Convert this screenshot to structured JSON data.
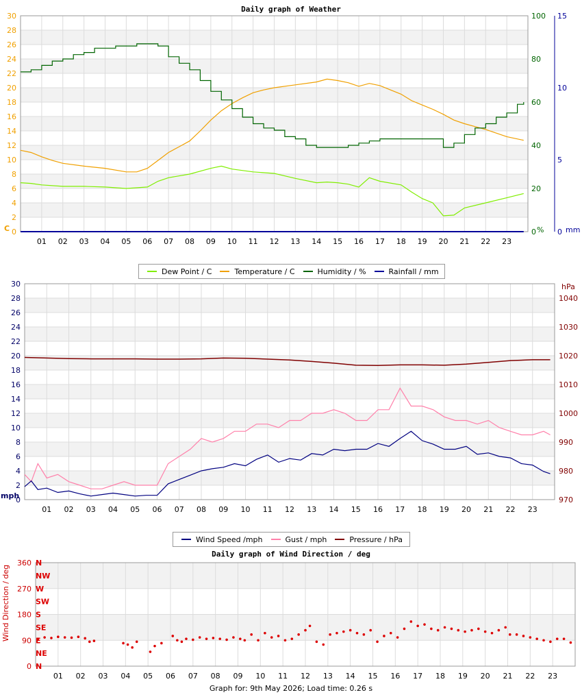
{
  "footer": {
    "graph_for_label": "Graph for:",
    "date": "9th May 2026",
    "load_label": "Load time:",
    "load_time": "0.26 s"
  },
  "hours": [
    "01",
    "02",
    "03",
    "04",
    "05",
    "06",
    "07",
    "08",
    "09",
    "10",
    "11",
    "12",
    "13",
    "14",
    "15",
    "16",
    "17",
    "18",
    "19",
    "20",
    "21",
    "22",
    "23"
  ],
  "chart_data": [
    {
      "type": "line",
      "title": "Daily graph of Weather",
      "x_unit": "hour of day",
      "xlim": [
        0,
        24
      ],
      "axes": {
        "left": {
          "label": "C",
          "ylim": [
            0,
            30
          ],
          "ticks": [
            0,
            2,
            4,
            6,
            8,
            10,
            12,
            14,
            16,
            18,
            20,
            22,
            24,
            26,
            28,
            30
          ],
          "color": "#f0a000"
        },
        "right1": {
          "label": "%",
          "ylim": [
            0,
            100
          ],
          "ticks": [
            0,
            20,
            40,
            60,
            80,
            100
          ],
          "color": "#006400"
        },
        "right2": {
          "label": "mm",
          "ylim": [
            0,
            15
          ],
          "ticks": [
            0,
            5,
            10,
            15
          ],
          "color": "#000099"
        }
      },
      "grid": true,
      "legend_position": "bottom",
      "series": [
        {
          "name": "Dew Point / C",
          "axis": "left",
          "color": "#80ee00",
          "x": [
            0,
            0.5,
            1,
            2,
            3,
            4,
            5,
            6,
            6.5,
            7,
            8,
            9,
            9.5,
            10,
            11,
            12,
            13,
            14,
            14.5,
            15,
            15.5,
            16,
            16.5,
            17,
            18,
            18.5,
            19,
            19.5,
            20,
            20.5,
            21,
            22,
            23,
            23.8
          ],
          "y": [
            6.8,
            6.7,
            6.5,
            6.3,
            6.3,
            6.2,
            6,
            6.2,
            7,
            7.5,
            8,
            8.8,
            9.1,
            8.7,
            8.3,
            8.1,
            7.4,
            6.8,
            6.9,
            6.8,
            6.6,
            6.2,
            7.5,
            7,
            6.5,
            5.5,
            4.6,
            4,
            2.2,
            2.3,
            3.3,
            4,
            4.7,
            5.3
          ]
        },
        {
          "name": "Temperature / C",
          "axis": "left",
          "color": "#f0a000",
          "x": [
            0,
            0.5,
            1,
            1.5,
            2,
            3,
            4,
            5,
            5.5,
            6,
            6.5,
            7,
            7.5,
            8,
            8.5,
            9,
            9.5,
            10,
            10.5,
            11,
            11.5,
            12,
            13,
            14,
            14.5,
            15,
            15.5,
            16,
            16.5,
            17,
            17.5,
            18,
            18.5,
            19,
            19.5,
            20,
            20.5,
            21,
            21.5,
            22,
            22.5,
            23,
            23.8
          ],
          "y": [
            11.3,
            11,
            10.4,
            9.9,
            9.5,
            9.1,
            8.8,
            8.3,
            8.3,
            8.8,
            9.9,
            11,
            11.8,
            12.6,
            14,
            15.5,
            16.8,
            17.8,
            18.6,
            19.3,
            19.7,
            20,
            20.4,
            20.8,
            21.2,
            21,
            20.7,
            20.2,
            20.6,
            20.3,
            19.7,
            19.1,
            18.2,
            17.6,
            17,
            16.3,
            15.5,
            15,
            14.6,
            14.2,
            13.7,
            13.2,
            12.7
          ]
        },
        {
          "name": "Humidity / %",
          "axis": "right1",
          "color": "#006400",
          "step": true,
          "x": [
            0,
            0.5,
            1,
            1.5,
            2,
            2.5,
            3,
            3.5,
            4,
            4.5,
            5,
            5.5,
            6,
            6.5,
            7,
            7.5,
            8,
            8.5,
            9,
            9.5,
            10,
            10.5,
            11,
            11.5,
            12,
            12.5,
            13,
            13.5,
            14,
            14.5,
            15,
            15.5,
            16,
            16.5,
            17,
            17.5,
            18,
            18.5,
            19,
            19.5,
            20,
            20.5,
            21,
            21.5,
            22,
            22.5,
            23,
            23.5,
            23.8
          ],
          "y": [
            74,
            75,
            77,
            79,
            80,
            82,
            83,
            85,
            85,
            86,
            86,
            87,
            87,
            86,
            81,
            78,
            75,
            70,
            65,
            61,
            57,
            53,
            50,
            48,
            47,
            44,
            43,
            40,
            39,
            39,
            39,
            40,
            41,
            42,
            43,
            43,
            43,
            43,
            43,
            43,
            39,
            41,
            45,
            48,
            50,
            53,
            55,
            59,
            60
          ]
        },
        {
          "name": "Rainfall / mm",
          "axis": "right2",
          "color": "#000099",
          "x": [
            0,
            23.8
          ],
          "y": [
            0,
            0
          ]
        }
      ]
    },
    {
      "type": "line",
      "title": "",
      "x_unit": "hour of day",
      "xlim": [
        0,
        24
      ],
      "axes": {
        "left": {
          "label": "mph",
          "ylim": [
            0,
            30
          ],
          "ticks": [
            0,
            2,
            4,
            6,
            8,
            10,
            12,
            14,
            16,
            18,
            20,
            22,
            24,
            26,
            28,
            30
          ],
          "color": "#000066"
        },
        "right": {
          "label": "hPa",
          "ylim": [
            970,
            1045
          ],
          "ticks": [
            970,
            980,
            990,
            1000,
            1010,
            1020,
            1030,
            1040
          ],
          "color": "#800000"
        }
      },
      "grid": true,
      "legend_position": "bottom",
      "series": [
        {
          "name": "Wind Speed /mph",
          "axis": "left",
          "color": "#000080",
          "x": [
            0,
            0.3,
            0.6,
            1,
            1.5,
            2,
            2.5,
            3,
            3.5,
            4,
            4.5,
            5,
            5.5,
            6,
            6.5,
            7,
            7.5,
            8,
            8.5,
            9,
            9.5,
            10,
            10.5,
            11,
            11.5,
            12,
            12.5,
            13,
            13.5,
            14,
            14.5,
            15,
            15.5,
            16,
            16.5,
            17,
            17.5,
            18,
            18.5,
            19,
            19.5,
            20,
            20.5,
            21,
            21.5,
            22,
            22.5,
            23,
            23.5,
            23.8
          ],
          "y": [
            1.8,
            2.6,
            1.4,
            1.6,
            1,
            1.2,
            0.8,
            0.5,
            0.7,
            0.9,
            0.7,
            0.5,
            0.6,
            0.6,
            2.2,
            2.8,
            3.4,
            4,
            4.3,
            4.5,
            5,
            4.7,
            5.6,
            6.2,
            5.2,
            5.7,
            5.5,
            6.4,
            6.2,
            7,
            6.8,
            7,
            7,
            7.8,
            7.4,
            8.5,
            9.5,
            8.2,
            7.7,
            7,
            7,
            7.4,
            6.3,
            6.5,
            6,
            5.8,
            5,
            4.8,
            3.9,
            3.6
          ]
        },
        {
          "name": "Gust / mph",
          "axis": "left",
          "color": "#ff80aa",
          "x": [
            0,
            0.3,
            0.6,
            1,
            1.5,
            2,
            2.5,
            3,
            3.5,
            4,
            4.5,
            5,
            5.5,
            6,
            6.5,
            7,
            7.5,
            8,
            8.5,
            9,
            9.5,
            10,
            10.5,
            11,
            11.5,
            12,
            12.5,
            13,
            13.5,
            14,
            14.5,
            15,
            15.5,
            16,
            16.5,
            17,
            17.5,
            18,
            18.5,
            19,
            19.5,
            20,
            20.5,
            21,
            21.5,
            22,
            22.5,
            23,
            23.5,
            23.8
          ],
          "y": [
            3.5,
            2.5,
            5,
            3,
            3.5,
            2.5,
            2,
            1.5,
            1.5,
            2,
            2.5,
            2,
            2,
            2,
            5,
            6,
            7,
            8.5,
            8,
            8.5,
            9.5,
            9.5,
            10.5,
            10.5,
            10,
            11,
            11,
            12,
            12,
            12.5,
            12,
            11,
            11,
            12.5,
            12.5,
            15.5,
            13,
            13,
            12.5,
            11.5,
            11,
            11,
            10.5,
            11,
            10,
            9.5,
            9,
            9,
            9.5,
            9
          ]
        },
        {
          "name": "Pressure / hPa",
          "axis": "right",
          "color": "#800000",
          "x": [
            0,
            1,
            2,
            3,
            4,
            5,
            6,
            7,
            8,
            9,
            10,
            11,
            12,
            13,
            14,
            15,
            16,
            17,
            18,
            19,
            20,
            21,
            22,
            23,
            23.8
          ],
          "y": [
            1019.4,
            1019.2,
            1019.0,
            1018.9,
            1018.9,
            1018.9,
            1018.8,
            1018.8,
            1018.9,
            1019.2,
            1019.1,
            1018.8,
            1018.5,
            1018,
            1017.4,
            1016.7,
            1016.6,
            1016.8,
            1016.8,
            1016.7,
            1017.1,
            1017.7,
            1018.3,
            1018.6,
            1018.6
          ]
        }
      ]
    },
    {
      "type": "scatter",
      "title": "Daily graph of Wind Direction / deg",
      "x_unit": "hour of day",
      "xlim": [
        0,
        24
      ],
      "axes": {
        "left": {
          "label": "Wind Direction / deg",
          "ylim": [
            0,
            360
          ],
          "ticks": [
            0,
            90,
            180,
            270,
            360
          ],
          "color": "#cc0000"
        }
      },
      "compass_labels": [
        "N",
        "NE",
        "E",
        "SE",
        "S",
        "SW",
        "W",
        "NW",
        "N"
      ],
      "grid": true,
      "series": [
        {
          "name": "Wind Direction",
          "color": "#dd0000",
          "x": [
            0.1,
            0.4,
            0.7,
            1,
            1.3,
            1.6,
            1.9,
            2.2,
            2.4,
            2.6,
            3.9,
            4.1,
            4.3,
            4.5,
            5.1,
            5.3,
            5.6,
            6.1,
            6.3,
            6.5,
            6.7,
            7,
            7.3,
            7.6,
            7.9,
            8.2,
            8.5,
            8.8,
            9.1,
            9.3,
            9.6,
            9.9,
            10.2,
            10.5,
            10.8,
            11.1,
            11.4,
            11.7,
            12,
            12.2,
            12.5,
            12.8,
            13.1,
            13.4,
            13.7,
            14,
            14.3,
            14.6,
            14.9,
            15.2,
            15.5,
            15.8,
            16.1,
            16.4,
            16.7,
            17,
            17.3,
            17.6,
            17.9,
            18.2,
            18.5,
            18.8,
            19.1,
            19.4,
            19.7,
            20,
            20.3,
            20.6,
            20.9,
            21.1,
            21.4,
            21.7,
            22,
            22.3,
            22.6,
            22.9,
            23.2,
            23.5,
            23.8
          ],
          "y": [
            95,
            100,
            98,
            102,
            100,
            99,
            102,
            97,
            85,
            88,
            80,
            75,
            65,
            85,
            50,
            70,
            80,
            105,
            90,
            85,
            95,
            92,
            100,
            95,
            98,
            95,
            92,
            100,
            95,
            90,
            110,
            90,
            115,
            100,
            105,
            90,
            95,
            110,
            125,
            140,
            85,
            75,
            110,
            115,
            120,
            125,
            115,
            110,
            125,
            85,
            105,
            115,
            100,
            130,
            155,
            140,
            145,
            130,
            125,
            135,
            130,
            125,
            120,
            125,
            130,
            120,
            115,
            125,
            135,
            110,
            110,
            105,
            100,
            95,
            90,
            85,
            95,
            95,
            82
          ]
        }
      ]
    }
  ]
}
